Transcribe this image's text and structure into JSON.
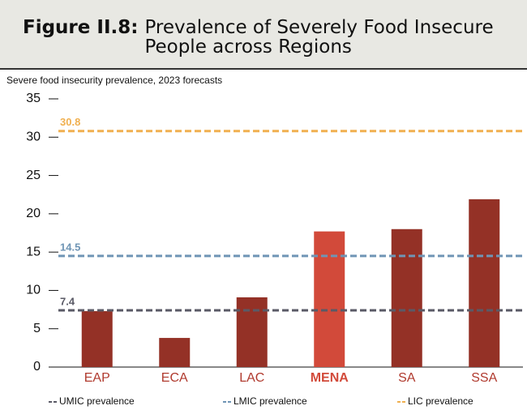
{
  "chart_data": {
    "type": "bar",
    "title_label": "Figure II.8:",
    "title": "Prevalence of Severely Food Insecure People across Regions",
    "subtitle": "Severe food insecurity prevalence, 2023 forecasts",
    "categories": [
      "EAP",
      "ECA",
      "LAC",
      "MENA",
      "SA",
      "SSA"
    ],
    "values": [
      7.3,
      3.8,
      9.1,
      17.7,
      18.0,
      21.9
    ],
    "color": "#943126",
    "highlight": {
      "index": 3,
      "color": "#d24a3a"
    },
    "reference_lines": [
      {
        "name": "UMIC prevalence",
        "value": 7.4,
        "color": "#5a5a66"
      },
      {
        "name": "LMIC prevalence",
        "value": 14.5,
        "color": "#6f95b5"
      },
      {
        "name": "LIC prevalence",
        "value": 30.8,
        "color": "#f0b050"
      }
    ],
    "ylim": [
      0,
      35
    ],
    "yticks": [
      0,
      5,
      10,
      15,
      20,
      25,
      30,
      35
    ]
  }
}
